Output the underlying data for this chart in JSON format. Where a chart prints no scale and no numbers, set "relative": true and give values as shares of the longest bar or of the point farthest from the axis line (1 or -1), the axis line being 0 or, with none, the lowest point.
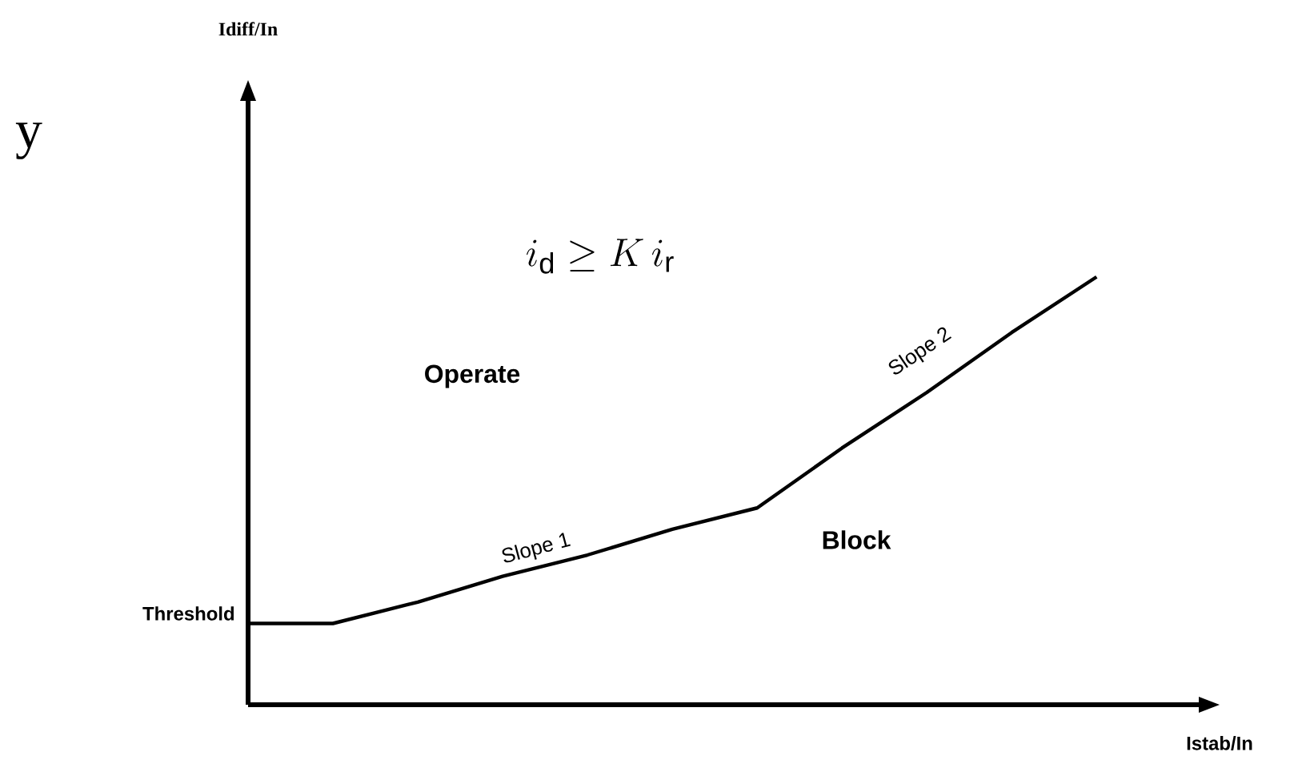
{
  "chart_data": {
    "type": "line",
    "relative": true,
    "xlabel": "Istab/In",
    "categories": [
      null,
      null,
      null,
      null,
      null,
      null,
      null,
      null,
      null,
      null,
      null
    ],
    "series": [
      {
        "color": "#000000",
        "values": [
          0.19,
          0.19,
          0.24,
          0.3,
          0.35,
          0.41,
          0.46,
          0.6,
          0.73,
          0.87,
          1
        ]
      }
    ],
    "annotations": [
      "Threshold",
      "Slope 1",
      "Slope 2",
      "i_{\\mathrm{d}} \\geq K\\,i_{\\mathrm{r}}",
      "Operate",
      "Block",
      "y",
      "Idiff/In"
    ]
  }
}
